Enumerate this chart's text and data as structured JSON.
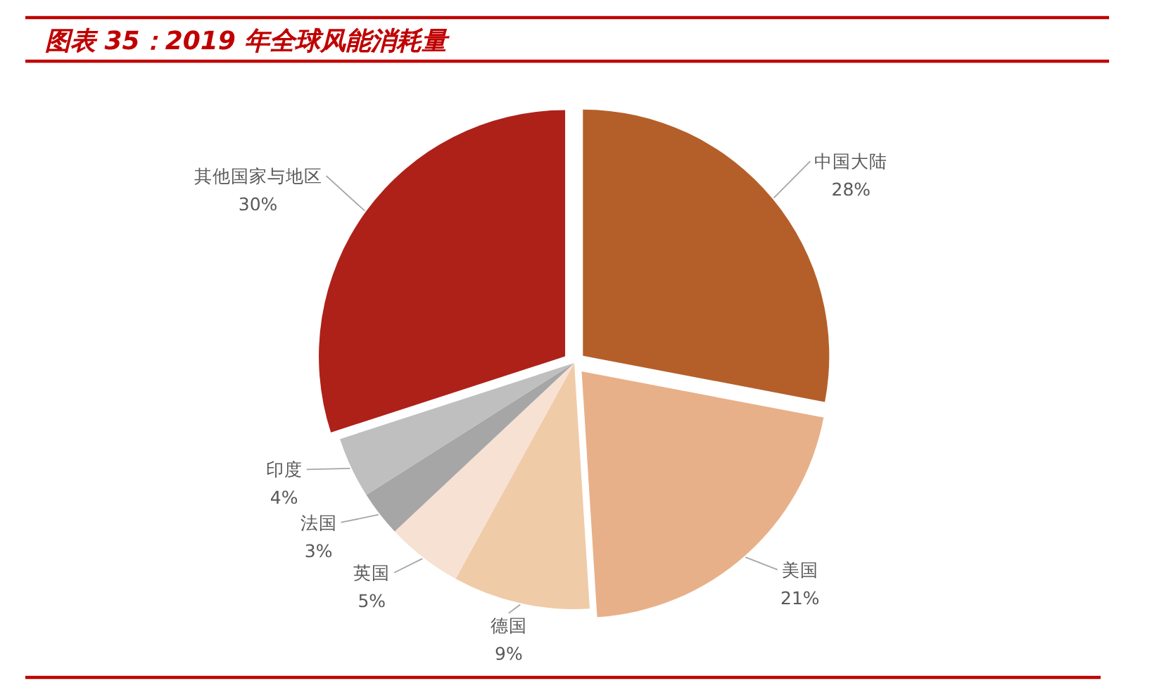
{
  "chart_data": {
    "type": "pie",
    "title": "图表 35：2019 年全球风能消耗量",
    "categories": [
      "中国大陆",
      "美国",
      "德国",
      "英国",
      "法国",
      "印度",
      "其他国家与地区"
    ],
    "values": [
      28,
      21,
      9,
      5,
      3,
      4,
      30
    ],
    "colors": [
      "#b45f29",
      "#e8b088",
      "#f0cba8",
      "#f7e1d3",
      "#a6a6a6",
      "#bfbfbf",
      "#ad2119"
    ],
    "value_labels": [
      "28%",
      "21%",
      "9%",
      "5%",
      "3%",
      "4%",
      "30%"
    ]
  }
}
